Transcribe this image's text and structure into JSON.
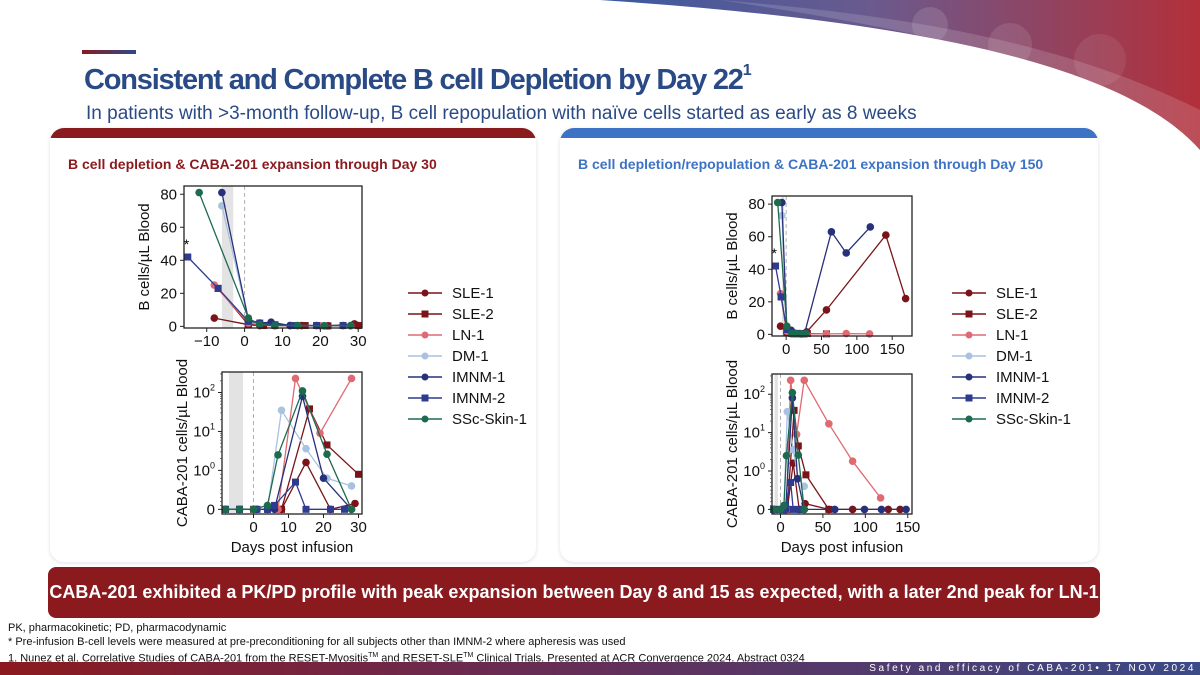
{
  "header": {
    "title": "Consistent and Complete B cell Depletion by Day 22",
    "title_superscript": "1",
    "subtitle": "In patients with >3-month follow-up, B cell repopulation with naïve cells started as early as 8 weeks"
  },
  "colors": {
    "brand_red": "#8b1a1f",
    "brand_blue": "#3d73c4",
    "title_blue": "#2a4a86"
  },
  "panels": {
    "left": {
      "heading": "B cell depletion & CABA-201 expansion through Day 30"
    },
    "right": {
      "heading": "B cell depletion/repopulation & CABA-201 expansion through Day 150"
    }
  },
  "legend": [
    {
      "name": "SLE-1",
      "color": "#7a1418",
      "marker": "circle"
    },
    {
      "name": "SLE-2",
      "color": "#7a1418",
      "marker": "square"
    },
    {
      "name": "LN-1",
      "color": "#e06a72",
      "marker": "circle"
    },
    {
      "name": "DM-1",
      "color": "#a9c2e0",
      "marker": "circle"
    },
    {
      "name": "IMNM-1",
      "color": "#27307a",
      "marker": "circle"
    },
    {
      "name": "IMNM-2",
      "color": "#2e3b8e",
      "marker": "square"
    },
    {
      "name": "SSc-Skin-1",
      "color": "#1d6b4f",
      "marker": "circle"
    }
  ],
  "chart_data": [
    {
      "id": "left-top",
      "type": "line",
      "title": "",
      "xlabel": "",
      "ylabel": "B cells/µL Blood",
      "xlim": [
        -16,
        31
      ],
      "ylim": [
        -1,
        85
      ],
      "xticks": [
        -10,
        0,
        10,
        20,
        30
      ],
      "xtick_labels": [
        "−10",
        "0",
        "10",
        "20",
        "30"
      ],
      "yticks": [
        0,
        20,
        40,
        60,
        80
      ],
      "yscale": "linear",
      "shaded_region": [
        -6,
        -3
      ],
      "infusion_line": 0,
      "annotation": {
        "text": "*",
        "series": "IMNM-2"
      },
      "series": [
        {
          "name": "SLE-1",
          "x": [
            -8,
            1,
            4,
            8,
            15,
            22,
            29,
            30
          ],
          "y": [
            5,
            1,
            0.5,
            0.5,
            0.5,
            0.3,
            1.5,
            0.5
          ]
        },
        {
          "name": "SLE-2",
          "x": [
            -7,
            1,
            5,
            8,
            16,
            22,
            30
          ],
          "y": [
            23,
            1,
            0.5,
            0.5,
            0.5,
            0.3,
            0.5
          ]
        },
        {
          "name": "LN-1",
          "x": [
            -8,
            1,
            4,
            8,
            12,
            20,
            28
          ],
          "y": [
            25,
            2,
            1,
            0.5,
            0.5,
            0.3,
            0.3
          ]
        },
        {
          "name": "DM-1",
          "x": [
            -6,
            1,
            4,
            8,
            14,
            21,
            28
          ],
          "y": [
            73,
            4,
            2,
            1,
            0.5,
            0.5,
            0.5
          ]
        },
        {
          "name": "IMNM-1",
          "x": [
            -6,
            1,
            4,
            7,
            12,
            19,
            26
          ],
          "y": [
            81,
            4,
            2,
            2.5,
            0.5,
            0.5,
            0.5
          ]
        },
        {
          "name": "IMNM-2",
          "x": [
            -15,
            -7,
            1,
            4,
            8,
            13,
            19,
            26
          ],
          "y": [
            42,
            23,
            3,
            2,
            1,
            0.5,
            0.5,
            0.5
          ]
        },
        {
          "name": "SSc-Skin-1",
          "x": [
            -12,
            1,
            4,
            8,
            14,
            21,
            28
          ],
          "y": [
            81,
            5,
            1,
            0.5,
            0.5,
            0.3,
            0.5
          ]
        }
      ]
    },
    {
      "id": "left-bottom",
      "type": "line",
      "title": "",
      "xlabel": "Days post infusion",
      "ylabel": "CABA-201 cells/µL Blood",
      "xlim": [
        -9,
        31
      ],
      "yscale": "symlog",
      "ylim": [
        0,
        300
      ],
      "xticks": [
        0,
        10,
        20,
        30
      ],
      "xtick_labels": [
        "0",
        "10",
        "20",
        "30"
      ],
      "yticks": [
        0,
        1,
        10,
        100
      ],
      "ytick_labels": [
        "0",
        "10^0",
        "10^1",
        "10^2"
      ],
      "shaded_region": [
        -7,
        -3
      ],
      "infusion_line": 0,
      "series": [
        {
          "name": "SLE-1",
          "x": [
            -8,
            -4,
            0,
            4,
            8,
            15,
            22,
            29
          ],
          "y": [
            0,
            0,
            0,
            0,
            0,
            1.6,
            0,
            0.15
          ]
        },
        {
          "name": "SLE-2",
          "x": [
            -8,
            -4,
            0,
            4,
            8,
            16,
            21,
            30
          ],
          "y": [
            0,
            0,
            0,
            0,
            0,
            38,
            4.5,
            0.9
          ]
        },
        {
          "name": "LN-1",
          "x": [
            -8,
            -4,
            0,
            4,
            7,
            12,
            19,
            28
          ],
          "y": [
            0,
            0,
            0,
            0,
            0,
            230,
            9,
            230
          ]
        },
        {
          "name": "DM-1",
          "x": [
            -8,
            -4,
            0,
            4,
            8,
            15,
            21,
            28
          ],
          "y": [
            0,
            0,
            0,
            0,
            35,
            3.6,
            0.8,
            0.6
          ]
        },
        {
          "name": "IMNM-1",
          "x": [
            -8,
            -4,
            1,
            4,
            6,
            14,
            20,
            28
          ],
          "y": [
            0,
            0,
            0,
            0,
            0,
            80,
            0.8,
            0
          ]
        },
        {
          "name": "IMNM-2",
          "x": [
            -8,
            -4,
            1,
            4,
            6,
            12,
            15,
            22,
            26
          ],
          "y": [
            0,
            0,
            0,
            0,
            0.1,
            0.7,
            0,
            0,
            0
          ]
        },
        {
          "name": "SSc-Skin-1",
          "x": [
            -8,
            -4,
            0,
            4,
            7,
            14,
            21,
            28
          ],
          "y": [
            0,
            0,
            0,
            0.1,
            2.5,
            110,
            2.6,
            0
          ]
        }
      ]
    },
    {
      "id": "right-top",
      "type": "line",
      "title": "",
      "xlabel": "",
      "ylabel": "B cells/µL Blood",
      "xlim": [
        -20,
        178
      ],
      "ylim": [
        -1,
        85
      ],
      "xticks": [
        0,
        50,
        100,
        150
      ],
      "xtick_labels": [
        "0",
        "50",
        "100",
        "150"
      ],
      "yticks": [
        0,
        20,
        40,
        60,
        80
      ],
      "yscale": "linear",
      "shaded_region": [
        -6,
        -3
      ],
      "infusion_line": 0,
      "annotation": {
        "text": "*",
        "series": "IMNM-2"
      },
      "series": [
        {
          "name": "SLE-1",
          "x": [
            -8,
            1,
            8,
            15,
            22,
            29,
            57,
            141,
            169
          ],
          "y": [
            5,
            1,
            0.5,
            0.5,
            0.3,
            1.5,
            15,
            61,
            22
          ]
        },
        {
          "name": "SLE-2",
          "x": [
            -7,
            1,
            8,
            16,
            22,
            30,
            57
          ],
          "y": [
            23,
            1,
            0.5,
            0.5,
            0.3,
            0.5,
            0.3
          ]
        },
        {
          "name": "LN-1",
          "x": [
            -8,
            1,
            8,
            12,
            20,
            28,
            57,
            85,
            118
          ],
          "y": [
            25,
            2,
            0.5,
            0.5,
            0.3,
            0.3,
            0.3,
            0.5,
            0.3
          ]
        },
        {
          "name": "DM-1",
          "x": [
            -6,
            1,
            8,
            14,
            21,
            28
          ],
          "y": [
            73,
            4,
            1,
            0.5,
            0.5,
            0.5
          ]
        },
        {
          "name": "IMNM-1",
          "x": [
            -6,
            1,
            7,
            12,
            19,
            26,
            64,
            85,
            119
          ],
          "y": [
            81,
            4,
            2.5,
            0.5,
            0.5,
            0.5,
            63,
            50,
            66
          ]
        },
        {
          "name": "IMNM-2",
          "x": [
            -15,
            -7,
            1,
            8,
            13,
            19,
            26
          ],
          "y": [
            42,
            23,
            3,
            1,
            0.5,
            0.5,
            0.5
          ]
        },
        {
          "name": "SSc-Skin-1",
          "x": [
            -12,
            1,
            8,
            14,
            21,
            28
          ],
          "y": [
            81,
            5,
            0.5,
            0.5,
            0.3,
            0.5
          ]
        }
      ]
    },
    {
      "id": "right-bottom",
      "type": "line",
      "title": "",
      "xlabel": "Days post infusion",
      "ylabel": "CABA-201 cells/µL Blood",
      "xlim": [
        -10,
        155
      ],
      "yscale": "symlog",
      "ylim": [
        0,
        300
      ],
      "xticks": [
        0,
        50,
        100,
        150
      ],
      "xtick_labels": [
        "0",
        "50",
        "100",
        "150"
      ],
      "yticks": [
        0,
        1,
        10,
        100
      ],
      "ytick_labels": [
        "0",
        "10^0",
        "10^1",
        "10^2"
      ],
      "shaded_region": [
        -7,
        -3
      ],
      "infusion_line": 0,
      "series": [
        {
          "name": "SLE-1",
          "x": [
            -8,
            0,
            4,
            8,
            15,
            22,
            29,
            57,
            85,
            127,
            141
          ],
          "y": [
            0,
            0,
            0,
            0,
            1.6,
            0,
            0.15,
            0,
            0,
            0,
            0
          ]
        },
        {
          "name": "SLE-2",
          "x": [
            -8,
            0,
            4,
            8,
            16,
            21,
            30,
            57
          ],
          "y": [
            0,
            0,
            0,
            0,
            38,
            4.5,
            0.9,
            0
          ]
        },
        {
          "name": "LN-1",
          "x": [
            -8,
            0,
            4,
            7,
            12,
            19,
            28,
            57,
            85,
            118
          ],
          "y": [
            0,
            0,
            0,
            0,
            230,
            9,
            230,
            17,
            1.8,
            0.3
          ]
        },
        {
          "name": "DM-1",
          "x": [
            -8,
            0,
            4,
            8,
            15,
            21,
            28
          ],
          "y": [
            0,
            0,
            0,
            35,
            3.6,
            0.8,
            0.6
          ]
        },
        {
          "name": "IMNM-1",
          "x": [
            -8,
            1,
            4,
            6,
            14,
            20,
            28,
            64,
            99,
            119,
            148
          ],
          "y": [
            0,
            0,
            0,
            0,
            80,
            0.8,
            0,
            0,
            0,
            0,
            0
          ]
        },
        {
          "name": "IMNM-2",
          "x": [
            -8,
            1,
            4,
            6,
            12,
            15,
            22,
            26
          ],
          "y": [
            0,
            0,
            0,
            0.1,
            0.7,
            0,
            0,
            0
          ]
        },
        {
          "name": "SSc-Skin-1",
          "x": [
            -8,
            0,
            4,
            7,
            14,
            21,
            28
          ],
          "y": [
            0,
            0,
            0.1,
            2.5,
            110,
            2.6,
            0
          ]
        }
      ]
    }
  ],
  "conclusion": "CABA-201 exhibited a PK/PD profile with peak expansion between Day 8 and 15 as expected, with a later 2nd peak for LN-1",
  "footnotes": {
    "line1": "PK, pharmacokinetic; PD, pharmacodynamic",
    "line2": "* Pre-infusion B-cell levels were measured at pre-preconditioning for all subjects other than IMNM-2 where apheresis was used",
    "line3_a": "1. Nunez et al. Correlative Studies of CABA-201 from the RESET-Myositis",
    "line3_tm1": "TM",
    "line3_b": " and RESET-SLE",
    "line3_tm2": "TM",
    "line3_c": " Clinical Trials. Presented at ACR Convergence 2024. Abstract 0324"
  },
  "footer": {
    "text": "Safety and efficacy of CABA-201• 17 NOV 2024"
  }
}
